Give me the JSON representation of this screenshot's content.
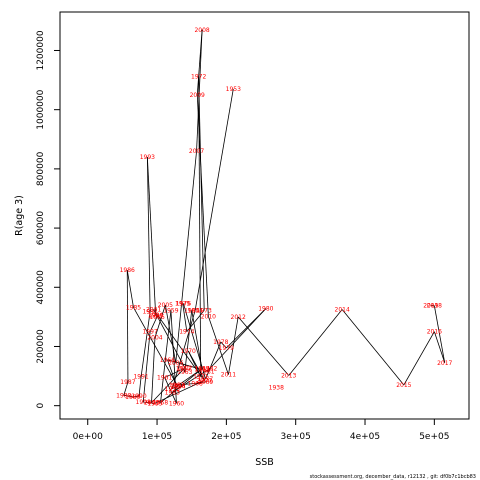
{
  "chart_data": {
    "type": "scatter",
    "connected": true,
    "xlabel": "SSB",
    "ylabel": "R(age 3)",
    "xlim": [
      -40000,
      550000
    ],
    "ylim": [
      -45000,
      1330000
    ],
    "x_ticks": [
      {
        "value": 0,
        "label": "0e+00"
      },
      {
        "value": 100000,
        "label": "1e+05"
      },
      {
        "value": 200000,
        "label": "2e+05"
      },
      {
        "value": 300000,
        "label": "3e+05"
      },
      {
        "value": 400000,
        "label": "4e+05"
      },
      {
        "value": 500000,
        "label": "5e+05"
      }
    ],
    "y_ticks": [
      {
        "value": 0,
        "label": "0"
      },
      {
        "value": 200000,
        "label": "200000"
      },
      {
        "value": 400000,
        "label": "400000"
      },
      {
        "value": 600000,
        "label": "600000"
      },
      {
        "value": 800000,
        "label": "800000"
      },
      {
        "value": 1000000,
        "label": "1000000"
      },
      {
        "value": 1200000,
        "label": "1200000"
      }
    ],
    "label_color": "#ff0000",
    "line_color": "#000000",
    "footer": "stockassessment.org, december_data, r12132 , git: df0b7c1bcb83",
    "points": [
      {
        "year": "1953",
        "x": 210000,
        "y": 1070000
      },
      {
        "year": "1954",
        "x": 155000,
        "y": 322000
      },
      {
        "year": "1955",
        "x": 122000,
        "y": 57000
      },
      {
        "year": "1956",
        "x": 130000,
        "y": 68000
      },
      {
        "year": "1957",
        "x": 165000,
        "y": 125000
      },
      {
        "year": "1958",
        "x": 105000,
        "y": 10000
      },
      {
        "year": "1959",
        "x": 120000,
        "y": 322000
      },
      {
        "year": "1960",
        "x": 128000,
        "y": 8000
      },
      {
        "year": "1961",
        "x": 111000,
        "y": 95000
      },
      {
        "year": "1962",
        "x": 138000,
        "y": 125000
      },
      {
        "year": "1963",
        "x": 140000,
        "y": 113000
      },
      {
        "year": "1964",
        "x": 150000,
        "y": 322000
      },
      {
        "year": "1965",
        "x": 165000,
        "y": 122000
      },
      {
        "year": "1966",
        "x": 115000,
        "y": 155000
      },
      {
        "year": "1967",
        "x": 128000,
        "y": 70000
      },
      {
        "year": "1968",
        "x": 155000,
        "y": 75000
      },
      {
        "year": "1969",
        "x": 170000,
        "y": 80000
      },
      {
        "year": "1970",
        "x": 145000,
        "y": 185000
      },
      {
        "year": "1971",
        "x": 163000,
        "y": 98000
      },
      {
        "year": "1972",
        "x": 160000,
        "y": 1112000
      },
      {
        "year": "1973",
        "x": 168000,
        "y": 322000
      },
      {
        "year": "1974",
        "x": 143000,
        "y": 250000
      },
      {
        "year": "1975",
        "x": 137000,
        "y": 345000
      },
      {
        "year": "1976",
        "x": 138000,
        "y": 345000
      },
      {
        "year": "1977",
        "x": 170000,
        "y": 90000
      },
      {
        "year": "1978",
        "x": 192000,
        "y": 215000
      },
      {
        "year": "1979",
        "x": 200000,
        "y": 195000
      },
      {
        "year": "1980",
        "x": 257000,
        "y": 328000
      },
      {
        "year": "1981",
        "x": 172000,
        "y": 115000
      },
      {
        "year": "1982",
        "x": 176000,
        "y": 125000
      },
      {
        "year": "1983",
        "x": 122000,
        "y": 45000
      },
      {
        "year": "1984",
        "x": 130000,
        "y": 65000
      },
      {
        "year": "1985",
        "x": 66000,
        "y": 332000
      },
      {
        "year": "1986",
        "x": 57000,
        "y": 458000
      },
      {
        "year": "1987",
        "x": 58000,
        "y": 80000
      },
      {
        "year": "1988",
        "x": 52000,
        "y": 35000
      },
      {
        "year": "1989",
        "x": 65000,
        "y": 30000
      },
      {
        "year": "1990",
        "x": 74000,
        "y": 32000
      },
      {
        "year": "1991",
        "x": 77000,
        "y": 98000
      },
      {
        "year": "1992",
        "x": 90000,
        "y": 318000
      },
      {
        "year": "1993",
        "x": 86000,
        "y": 840000
      },
      {
        "year": "1994",
        "x": 98000,
        "y": 307000
      },
      {
        "year": "1995",
        "x": 98000,
        "y": 305000
      },
      {
        "year": "1996",
        "x": 100000,
        "y": 300000
      },
      {
        "year": "1997",
        "x": 90000,
        "y": 250000
      },
      {
        "year": "1998",
        "x": 80000,
        "y": 12000
      },
      {
        "year": "1999",
        "x": 97000,
        "y": 8000
      },
      {
        "year": "2000",
        "x": 168000,
        "y": 85000
      },
      {
        "year": "2001",
        "x": 95000,
        "y": 325000
      },
      {
        "year": "2002",
        "x": 140000,
        "y": 128000
      },
      {
        "year": "2003",
        "x": 92000,
        "y": 10000
      },
      {
        "year": "2004",
        "x": 97000,
        "y": 230000
      },
      {
        "year": "2005",
        "x": 112000,
        "y": 340000
      },
      {
        "year": "2006",
        "x": 127000,
        "y": 145000
      },
      {
        "year": "2007",
        "x": 157000,
        "y": 860000
      },
      {
        "year": "2008",
        "x": 165000,
        "y": 1270000
      },
      {
        "year": "2009",
        "x": 158000,
        "y": 1050000
      },
      {
        "year": "2010",
        "x": 174000,
        "y": 302000
      },
      {
        "year": "2011",
        "x": 203000,
        "y": 105000
      },
      {
        "year": "2012",
        "x": 217000,
        "y": 300000
      },
      {
        "year": "2013",
        "x": 290000,
        "y": 102000
      },
      {
        "year": "2014",
        "x": 367000,
        "y": 325000
      },
      {
        "year": "2015",
        "x": 456000,
        "y": 70000
      },
      {
        "year": "2016",
        "x": 500000,
        "y": 250000
      },
      {
        "year": "2017",
        "x": 515000,
        "y": 145000
      },
      {
        "year": "2018",
        "x": 500000,
        "y": 338000
      },
      {
        "year": "2019",
        "x": 495000,
        "y": 338000
      },
      {
        "year": "1938",
        "x": 272000,
        "y": 62000
      }
    ],
    "path_order": [
      "1953",
      "1954",
      "1955",
      "1956",
      "1957",
      "1958",
      "1959",
      "1960",
      "1961",
      "1962",
      "1963",
      "1964",
      "1965",
      "1966",
      "1967",
      "1968",
      "1969",
      "1970",
      "1971",
      "1972",
      "1973",
      "1974",
      "1975",
      "1976",
      "1977",
      "1978",
      "1979",
      "1980",
      "1981",
      "1982",
      "1983",
      "1984",
      "1985",
      "1986",
      "1987",
      "1988",
      "1989",
      "1990",
      "1991",
      "1992",
      "1993",
      "1994",
      "1995",
      "1996",
      "1997",
      "1998",
      "1999",
      "2000",
      "2001",
      "2002",
      "2003",
      "2004",
      "2005",
      "2006",
      "2007",
      "2008",
      "2009",
      "2010",
      "2011",
      "2012",
      "2013",
      "2014",
      "2015",
      "2016",
      "2017",
      "2018",
      "2019"
    ]
  }
}
